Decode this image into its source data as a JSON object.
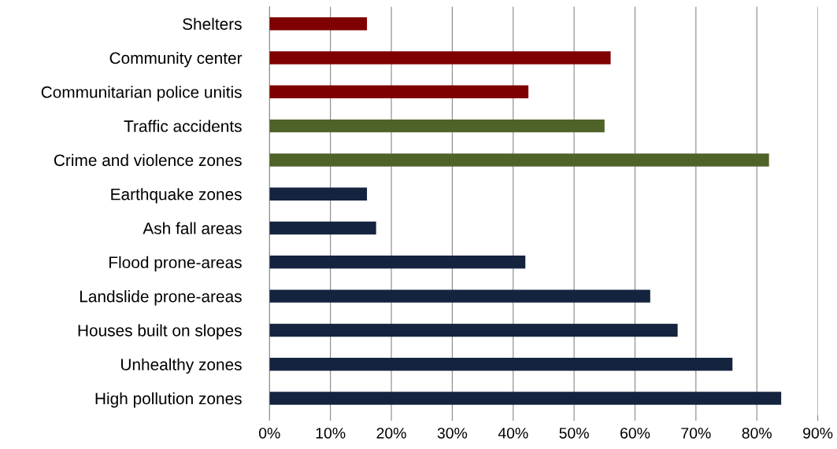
{
  "chart_data": {
    "type": "bar",
    "orientation": "horizontal",
    "categories": [
      "Shelters",
      "Community center",
      "Communitarian police unitis",
      "Traffic accidents",
      "Crime and violence zones",
      "Earthquake zones",
      "Ash fall areas",
      "Flood prone-areas",
      "Landslide prone-areas",
      "Houses built on slopes",
      "Unhealthy zones",
      "High pollution zones"
    ],
    "values": [
      16,
      56,
      42.5,
      55,
      82,
      16,
      17.5,
      42,
      62.5,
      67,
      76,
      84
    ],
    "colors": [
      "#7f0000",
      "#7f0000",
      "#7f0000",
      "#4f6228",
      "#4f6228",
      "#14243f",
      "#14243f",
      "#14243f",
      "#14243f",
      "#14243f",
      "#14243f",
      "#14243f"
    ],
    "xlim": [
      0,
      90
    ],
    "xticks": [
      {
        "value": 0,
        "label": "0%"
      },
      {
        "value": 10,
        "label": "10%"
      },
      {
        "value": 20,
        "label": "20%"
      },
      {
        "value": 30,
        "label": "30%"
      },
      {
        "value": 40,
        "label": "40%"
      },
      {
        "value": 50,
        "label": "50%"
      },
      {
        "value": 60,
        "label": "60%"
      },
      {
        "value": 70,
        "label": "70%"
      },
      {
        "value": 80,
        "label": "80%"
      },
      {
        "value": 90,
        "label": "90%"
      }
    ],
    "grid": "x"
  }
}
